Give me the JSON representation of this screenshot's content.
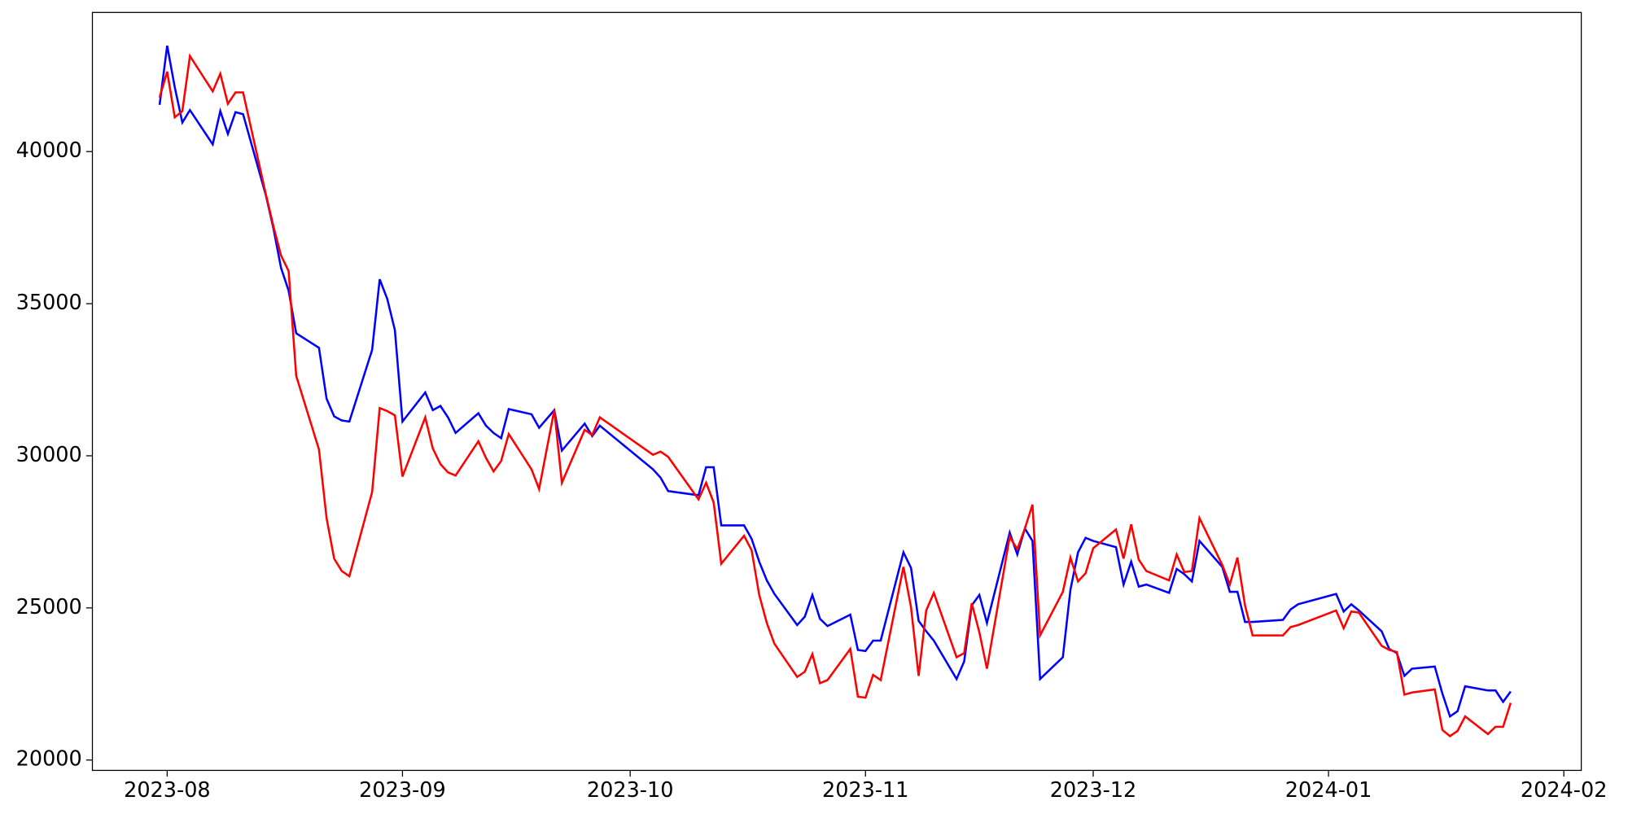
{
  "chart_data": {
    "type": "line",
    "x": [
      -1,
      0,
      1,
      2,
      3,
      6,
      7,
      8,
      9,
      10,
      13,
      14,
      15,
      16,
      17,
      20,
      21,
      22,
      23,
      24,
      27,
      28,
      29,
      30,
      31,
      34,
      35,
      36,
      37,
      38,
      41,
      42,
      43,
      44,
      45,
      48,
      49,
      51,
      52,
      55,
      56,
      57,
      64,
      65,
      66,
      70,
      71,
      72,
      73,
      76,
      77,
      78,
      79,
      80,
      83,
      84,
      85,
      86,
      87,
      90,
      91,
      92,
      93,
      94,
      97,
      98,
      99,
      100,
      101,
      104,
      105,
      106,
      107,
      108,
      111,
      112,
      113,
      114,
      115,
      118,
      119,
      120,
      121,
      122,
      125,
      126,
      127,
      128,
      129,
      132,
      133,
      134,
      135,
      136,
      139,
      140,
      141,
      142,
      143,
      147,
      148,
      149,
      154,
      155,
      156,
      157,
      160,
      161,
      162,
      163,
      164,
      167,
      168,
      169,
      170,
      171,
      174,
      175,
      176,
      177
    ],
    "series": [
      {
        "color": "#0000ff",
        "values": [
          41536,
          43481,
          42116,
          40956,
          41365,
          40239,
          41331,
          40580,
          41297,
          41229,
          38567,
          37475,
          36178,
          35427,
          34027,
          33550,
          31877,
          31297,
          31161,
          31126,
          33481,
          35802,
          35154,
          34130,
          31126,
          32082,
          31502,
          31638,
          31263,
          30751,
          31399,
          30990,
          30751,
          30580,
          31536,
          31365,
          30922,
          31502,
          30171,
          31058,
          30649,
          30990,
          29556,
          29283,
          28840,
          28703,
          29625,
          29625,
          27713,
          27713,
          27270,
          26519,
          25904,
          25461,
          24437,
          24710,
          25427,
          24642,
          24403,
          24778,
          23618,
          23584,
          23925,
          23925,
          26826,
          26314,
          24573,
          24232,
          23925,
          22662,
          23242,
          25085,
          25427,
          24505,
          27474,
          26758,
          27611,
          27201,
          22662,
          23379,
          25597,
          26826,
          27304,
          27201,
          26997,
          25768,
          26519,
          25700,
          25768,
          25495,
          26280,
          26109,
          25870,
          27201,
          26348,
          25529,
          25529,
          24539,
          24539,
          24608,
          24949,
          25120,
          25461,
          24881,
          25120,
          24915,
          24232,
          23652,
          23515,
          22765,
          23003,
          23072,
          22184,
          21433,
          21604,
          22423,
          22287,
          22287,
          21911,
          22253
        ]
      },
      {
        "color": "#ff0000",
        "values": [
          41775,
          42628,
          41126,
          41331,
          43140,
          41980,
          42560,
          41570,
          41946,
          41946,
          38601,
          37543,
          36587,
          36075,
          32628,
          30205,
          27952,
          26621,
          26212,
          26041,
          28806,
          31570,
          31468,
          31331,
          29317,
          31263,
          30239,
          29727,
          29454,
          29352,
          30478,
          29932,
          29488,
          29829,
          30717,
          29556,
          28908,
          31502,
          29113,
          30853,
          30683,
          31263,
          30034,
          30137,
          29966,
          28567,
          29113,
          28464,
          26451,
          27372,
          26894,
          25427,
          24505,
          23823,
          22730,
          22901,
          23481,
          22526,
          22628,
          23652,
          22082,
          22048,
          22799,
          22628,
          26348,
          25017,
          22765,
          24915,
          25495,
          23379,
          23515,
          25154,
          24198,
          23003,
          27338,
          26928,
          27611,
          28396,
          24096,
          25529,
          26655,
          25870,
          26143,
          26963,
          27577,
          26621,
          27748,
          26587,
          26212,
          25904,
          26758,
          26178,
          26212,
          27952,
          26416,
          25768,
          26655,
          25085,
          24096,
          24096,
          24369,
          24437,
          24915,
          24334,
          24881,
          24846,
          23754,
          23618,
          23550,
          22150,
          22218,
          22321,
          20990,
          20785,
          20956,
          21433,
          20853,
          21092,
          21092,
          21877
        ]
      }
    ],
    "xlim": [
      -9.85,
      186.3
    ],
    "xticks": [
      {
        "value": 0,
        "label": "2023-08"
      },
      {
        "value": 31,
        "label": "2023-09"
      },
      {
        "value": 61,
        "label": "2023-10"
      },
      {
        "value": 92,
        "label": "2023-11"
      },
      {
        "value": 122,
        "label": "2023-12"
      },
      {
        "value": 153,
        "label": "2024-01"
      },
      {
        "value": 184,
        "label": "2024-02"
      }
    ],
    "ylim": [
      19659,
      44573
    ],
    "yticks": [
      20000,
      25000,
      30000,
      35000,
      40000
    ]
  }
}
